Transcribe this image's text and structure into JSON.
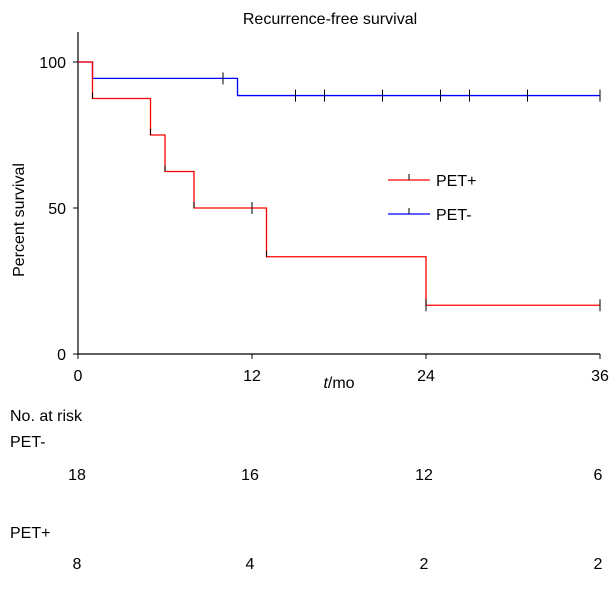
{
  "chart_data": {
    "type": "line",
    "title": "Recurrence-free survival",
    "xlabel_italic": "t",
    "xlabel_rest": "/mo",
    "ylabel": "Percent survival",
    "xlim": [
      0,
      36
    ],
    "ylim": [
      0,
      100
    ],
    "xticks": [
      "0",
      "12",
      "24",
      "36"
    ],
    "yticks": [
      "0",
      "50",
      "100"
    ],
    "legend_position": "right-middle",
    "series": [
      {
        "name": "PET+",
        "color": "#ff0000",
        "steps": [
          [
            0,
            100
          ],
          [
            1,
            87.5
          ],
          [
            5,
            75
          ],
          [
            6,
            62.5
          ],
          [
            8,
            50
          ],
          [
            13,
            33.3
          ],
          [
            24,
            16.7
          ],
          [
            36,
            16.7
          ]
        ],
        "censored": [
          [
            12,
            50
          ],
          [
            24,
            16.7
          ],
          [
            36,
            16.7
          ]
        ]
      },
      {
        "name": "PET-",
        "color": "#0000ff",
        "steps": [
          [
            0,
            100
          ],
          [
            1,
            94.4
          ],
          [
            11,
            88.5
          ],
          [
            36,
            88.5
          ]
        ],
        "censored": [
          [
            10,
            94.4
          ],
          [
            15,
            88.5
          ],
          [
            17,
            88.5
          ],
          [
            21,
            88.5
          ],
          [
            25,
            88.5
          ],
          [
            27,
            88.5
          ],
          [
            31,
            88.5
          ],
          [
            36,
            88.5
          ]
        ]
      }
    ]
  },
  "risk_table": {
    "heading": "No. at risk",
    "rows": [
      {
        "label": "PET-",
        "values": [
          "18",
          "16",
          "12",
          "6"
        ]
      },
      {
        "label": "PET+",
        "values": [
          "8",
          "4",
          "2",
          "2"
        ]
      }
    ]
  }
}
